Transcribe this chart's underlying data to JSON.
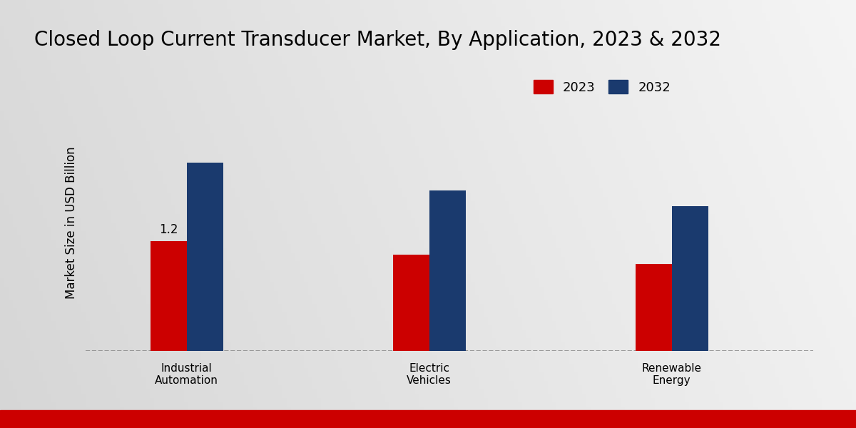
{
  "title": "Closed Loop Current Transducer Market, By Application, 2023 & 2032",
  "ylabel": "Market Size in USD Billion",
  "categories": [
    "Industrial\nAutomation",
    "Electric\nVehicles",
    "Renewable\nEnergy"
  ],
  "values_2023": [
    1.2,
    1.05,
    0.95
  ],
  "values_2032": [
    2.05,
    1.75,
    1.58
  ],
  "bar_color_2023": "#cc0000",
  "bar_color_2032": "#1a3a6e",
  "bar_width": 0.18,
  "annotation_label": "1.2",
  "legend_labels": [
    "2023",
    "2032"
  ],
  "bg_left": "#d8d8d8",
  "bg_right": "#f0f0f0",
  "bottom_stripe_color": "#cc0000",
  "bottom_stripe_height": 0.04,
  "title_fontsize": 20,
  "ylabel_fontsize": 12,
  "tick_fontsize": 11,
  "legend_fontsize": 13,
  "ylim": [
    0,
    2.8
  ],
  "xlim": [
    0.0,
    3.6
  ]
}
